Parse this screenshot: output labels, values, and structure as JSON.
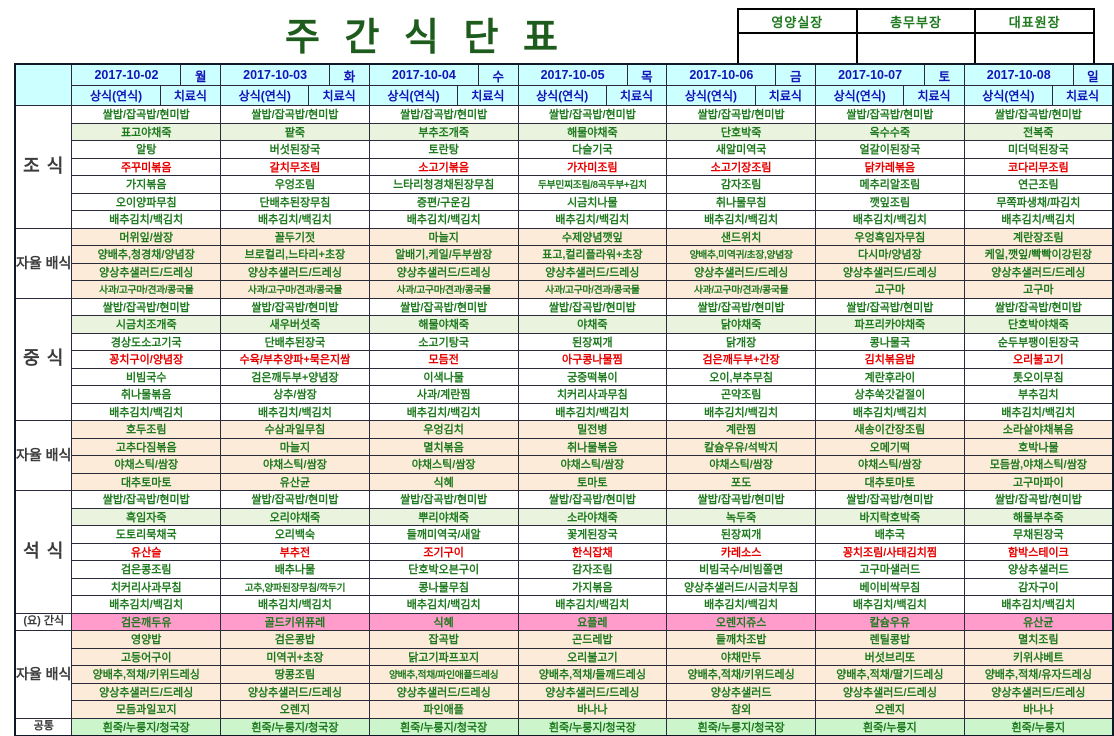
{
  "title": "주 간 식 단 표",
  "approval": {
    "labels": [
      "영양실장",
      "총무부장",
      "대표원장"
    ]
  },
  "colors": {
    "title_text": "#1d5c1d",
    "header_bg": "#ccffff",
    "header_text": "#1414b8",
    "item_text": "#1f7a1f",
    "red_text": "#e60000",
    "label_text": "#3c3c3c",
    "peach_bg": "#fdebd9",
    "pink_bg": "#ff9ccb",
    "green_bg": "#ccf5cc",
    "tint_bg": "#e9f3dd"
  },
  "days": [
    {
      "date": "2017-10-02",
      "dow": "월"
    },
    {
      "date": "2017-10-03",
      "dow": "화"
    },
    {
      "date": "2017-10-04",
      "dow": "수"
    },
    {
      "date": "2017-10-05",
      "dow": "목"
    },
    {
      "date": "2017-10-06",
      "dow": "금"
    },
    {
      "date": "2017-10-07",
      "dow": "토"
    },
    {
      "date": "2017-10-08",
      "dow": "일"
    }
  ],
  "subheader": {
    "normal": "상식(연식)",
    "therapy": "치료식"
  },
  "sections": [
    {
      "id": "breakfast",
      "label": "조\n식",
      "label_class": "lg",
      "bg": "white",
      "tint_row": 1,
      "days": [
        [
          "쌀밥/잡곡밥/현미밥",
          "표고야채죽",
          "알탕",
          {
            "t": "주꾸미볶음",
            "red": true
          },
          "가지볶음",
          "오이양파무침",
          "배추김치/백김치"
        ],
        [
          "쌀밥/잡곡밥/현미밥",
          "팥죽",
          "버섯된장국",
          {
            "t": "갈치무조림",
            "red": true
          },
          "우엉조림",
          "단배추된장무침",
          "배추김치/백김치"
        ],
        [
          "쌀밥/잡곡밥/현미밥",
          "부추조개죽",
          "토란탕",
          {
            "t": "소고기볶음",
            "red": true
          },
          "느타리청경채된장무침",
          "증편/구운김",
          "배추김치/백김치"
        ],
        [
          "쌀밥/잡곡밥/현미밥",
          "해물야채죽",
          "다슬기국",
          {
            "t": "가자미조림",
            "red": true
          },
          "두부민찌조림/8곡두부+김치",
          "시금치나물",
          "배추김치/백김치"
        ],
        [
          "쌀밥/잡곡밥/현미밥",
          "단호박죽",
          "새알미역국",
          {
            "t": "소고기장조림",
            "red": true
          },
          "감자조림",
          "취나물무침",
          "배추김치/백김치"
        ],
        [
          "쌀밥/잡곡밥/현미밥",
          "옥수수죽",
          "얼갈이된장국",
          {
            "t": "닭카레볶음",
            "red": true
          },
          "메추리알조림",
          "깻잎조림",
          "배추김치/백김치"
        ],
        [
          "쌀밥/잡곡밥/현미밥",
          "전복죽",
          "미더덕된장국",
          {
            "t": "코다리무조림",
            "red": true
          },
          "연근조림",
          "무쪽파생채/파김치",
          "배추김치/백김치"
        ]
      ]
    },
    {
      "id": "self-serve-1",
      "label": "자율\n배식",
      "label_class": "md",
      "bg": "peach",
      "days": [
        [
          "머위잎/쌈장",
          "양배추,청경채/양념장",
          "양상추샐러드/드레싱",
          "사과/고구마/견과/콩국물"
        ],
        [
          "꼴두기젓",
          "브로컬리,느타리+초장",
          "양상추샐러드/드레싱",
          "사과/고구마/견과/콩국물"
        ],
        [
          "마늘지",
          "알배기,케일/두부쌈장",
          "양상추샐러드/드레싱",
          "사과/고구마/견과/콩국물"
        ],
        [
          "수제양념깻잎",
          "표고,컬리플라워+초장",
          "양상추샐러드/드레싱",
          "사과/고구마/견과/콩국물"
        ],
        [
          "샌드위치",
          "양배추,미역귀/초장,양념장",
          "양상추샐러드/드레싱",
          "사과/고구마/견과/콩국물"
        ],
        [
          "우엉흑임자무침",
          "다시마/양념장",
          "양상추샐러드/드레싱",
          "고구마"
        ],
        [
          "계란장조림",
          "케일,깻잎/빡빡이강된장",
          "양상추샐러드/드레싱",
          "고구마"
        ]
      ]
    },
    {
      "id": "lunch",
      "label": "중\n식",
      "label_class": "lg",
      "bg": "white",
      "tint_row": 1,
      "days": [
        [
          "쌀밥/잡곡밥/현미밥",
          "시금치조개죽",
          "경상도소고기국",
          {
            "t": "꽁치구이/양념장",
            "red": true
          },
          "비빔국수",
          "취나물볶음",
          "배추김치/백김치"
        ],
        [
          "쌀밥/잡곡밥/현미밥",
          "새우버섯죽",
          "단배추된장국",
          {
            "t": "수육/부추양파+묵은지쌈",
            "red": true
          },
          "검은깨두부+양념장",
          "상추/쌈장",
          "배추김치/백김치"
        ],
        [
          "쌀밥/잡곡밥/현미밥",
          "해물야채죽",
          "소고기탕국",
          {
            "t": "모듬전",
            "red": true
          },
          "이색나물",
          "사과/계란찜",
          "배추김치/백김치"
        ],
        [
          "쌀밥/잡곡밥/현미밥",
          "야채죽",
          "된장찌개",
          {
            "t": "아구콩나물찜",
            "red": true
          },
          "궁중떡볶이",
          "치커리사과무침",
          "배추김치/백김치"
        ],
        [
          "쌀밥/잡곡밥/현미밥",
          "닭야채죽",
          "닭개장",
          {
            "t": "검은깨두부+간장",
            "red": true
          },
          "오이,부추무침",
          "곤약조림",
          "배추김치/백김치"
        ],
        [
          "쌀밥/잡곡밥/현미밥",
          "파프리카야채죽",
          "콩나물국",
          {
            "t": "김치볶음밥",
            "red": true
          },
          "계란후라이",
          "상추쑥갓겉절이",
          "배추김치/백김치"
        ],
        [
          "쌀밥/잡곡밥/현미밥",
          "단호박야채죽",
          "순두부팽이된장국",
          {
            "t": "오리불고기",
            "red": true
          },
          "톳오이무침",
          "부추김치",
          "배추김치/백김치"
        ]
      ]
    },
    {
      "id": "self-serve-2",
      "label": "자율\n배식",
      "label_class": "md",
      "bg": "peach",
      "days": [
        [
          "호두조림",
          "고추다짐볶음",
          "야채스틱/쌈장",
          "대추토마토"
        ],
        [
          "수삼과일무침",
          "마늘지",
          "야채스틱/쌈장",
          "유산균"
        ],
        [
          "우엉김치",
          "멸치볶음",
          "야채스틱/쌈장",
          "식혜"
        ],
        [
          "밀전병",
          "취나물볶음",
          "야채스틱/쌈장",
          "토마토"
        ],
        [
          "계란찜",
          "칼슘우유/석박지",
          "야채스틱/쌈장",
          "포도"
        ],
        [
          "새송이간장조림",
          "오메기떡",
          "야채스틱/쌈장",
          "대추토마토"
        ],
        [
          "소라살야채볶음",
          "호박나물",
          "모듬쌈,야채스틱/쌈장",
          "고구마파이"
        ]
      ]
    },
    {
      "id": "dinner",
      "label": "석\n식",
      "label_class": "lg",
      "bg": "white",
      "tint_row": 1,
      "days": [
        [
          "쌀밥/잡곡밥/현미밥",
          "흑임자죽",
          "도토리묵채국",
          {
            "t": "유산슬",
            "red": true
          },
          "검은콩조림",
          "치커리사과무침",
          "배추김치/백김치"
        ],
        [
          "쌀밥/잡곡밥/현미밥",
          "오리야채죽",
          "오리백숙",
          {
            "t": "부추전",
            "red": true
          },
          "배추나물",
          "고추,양파된장무침/깍두기",
          "배추김치/백김치"
        ],
        [
          "쌀밥/잡곡밥/현미밥",
          "뿌리야채죽",
          "들깨미역국/새알",
          {
            "t": "조기구이",
            "red": true
          },
          "단호박오븐구이",
          "콩나물무침",
          "배추김치/백김치"
        ],
        [
          "쌀밥/잡곡밥/현미밥",
          "소라야채죽",
          "꽃게된장국",
          {
            "t": "한식잡채",
            "red": true
          },
          "감자조림",
          "가지볶음",
          "배추김치/백김치"
        ],
        [
          "쌀밥/잡곡밥/현미밥",
          "녹두죽",
          "된장찌개",
          {
            "t": "카레소스",
            "red": true
          },
          "비빔국수/비빔쫄면",
          "양상추샐러드/시금치무침",
          "배추김치/백김치"
        ],
        [
          "쌀밥/잡곡밥/현미밥",
          "바지락호박죽",
          "배추국",
          {
            "t": "꽁치조림/사태김치찜",
            "red": true
          },
          "고구마샐러드",
          "베이비싹무침",
          "배추김치/백김치"
        ],
        [
          "쌀밥/잡곡밥/현미밥",
          "해물부추죽",
          "무채된장국",
          {
            "t": "함박스테이크",
            "red": true
          },
          "양상추샐러드",
          "감자구이",
          "배추김치/백김치"
        ]
      ]
    },
    {
      "id": "snack",
      "label": "(요) 간식",
      "label_class": "sm",
      "bg": "pink",
      "days": [
        [
          "검은깨두유"
        ],
        [
          "골드키위퓨레"
        ],
        [
          "식혜"
        ],
        [
          "요플레"
        ],
        [
          "오렌지쥬스"
        ],
        [
          "칼슘우유"
        ],
        [
          "유산균"
        ]
      ]
    },
    {
      "id": "self-serve-3",
      "label": "자율\n배식",
      "label_class": "md",
      "bg": "peach",
      "days": [
        [
          "영양밥",
          "고등어구이",
          "양배추,적채/키위드레싱",
          "양상추샐러드/드레싱",
          "모듬과일꼬지"
        ],
        [
          "검은콩밥",
          "미역귀+초장",
          "땅콩조림",
          "양상추샐러드/드레싱",
          "오렌지"
        ],
        [
          "잡곡밥",
          "닭고기파프꼬지",
          "양배추,적채/파인애플드레싱",
          "양상추샐러드/드레싱",
          "파인애플"
        ],
        [
          "곤드레밥",
          "오리불고기",
          "양배추,적채/들깨드레싱",
          "양상추샐러드/드레싱",
          "바나나"
        ],
        [
          "들깨차조밥",
          "야채만두",
          "양배추,적채/키위드레싱",
          "양상추샐러드",
          "참외"
        ],
        [
          "렌틸콩밥",
          "버섯브리또",
          "양배추,적채/딸기드레싱",
          "양상추샐러드/드레싱",
          "오렌지"
        ],
        [
          "멸치조림",
          "키위샤베트",
          "양배추,적채/유자드레싱",
          "양상추샐러드/드레싱",
          "바나나"
        ]
      ]
    },
    {
      "id": "common",
      "label": "공통",
      "label_class": "sm",
      "bg": "green",
      "days": [
        [
          "흰죽/누룽지/청국장"
        ],
        [
          "흰죽/누룽지/청국장"
        ],
        [
          "흰죽/누룽지/청국장"
        ],
        [
          "흰죽/누룽지/청국장"
        ],
        [
          "흰죽/누룽지/청국장"
        ],
        [
          "흰죽/누룽지"
        ],
        [
          "흰죽/누룽지"
        ]
      ]
    }
  ]
}
